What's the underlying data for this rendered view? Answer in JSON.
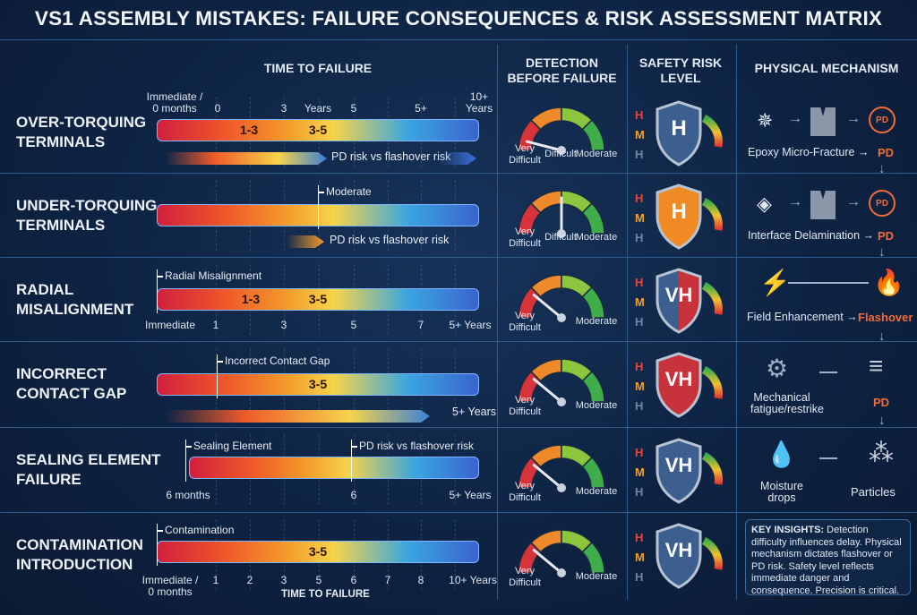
{
  "title": "VS1 ASSEMBLY MISTAKES: FAILURE CONSEQUENCES & RISK ASSESSMENT MATRIX",
  "headers": {
    "time": "TIME TO FAILURE",
    "detection": "DETECTION\nBEFORE FAILURE",
    "safety": "SAFETY RISK\nLEVEL",
    "mechanism": "PHYSICAL MECHANISM"
  },
  "colors": {
    "background": "#0e2343",
    "grid": "#2f5a8c",
    "pd_accent": "#f26b3a",
    "level_h": "#e8453c",
    "level_m": "#f3a12d",
    "level_low": "#6f86a6"
  },
  "hml_letters": [
    "H",
    "M",
    "H"
  ],
  "rows": [
    {
      "label": "OVER-TORQUING\nTERMINALS",
      "ticks_top": [
        "Immediate /\n0 months",
        "0",
        "3",
        "Years",
        "5",
        "5+",
        "10+\nYears"
      ],
      "bar_labels": [
        "1-3",
        "3-5"
      ],
      "sub_text": "PD risk vs flashover risk",
      "detection": {
        "labels": [
          "Very\nDifficult",
          "Difficult",
          "Moderate"
        ],
        "needle_level": 0.08
      },
      "safety": {
        "level": "H",
        "shield_color": "#3d5f8f"
      },
      "mechanism": {
        "text": "Epoxy Micro-Fracture →",
        "result": "PD",
        "icons": [
          "crack-icon",
          "fractured-block-icon",
          "pd-badge-icon"
        ]
      }
    },
    {
      "label": "UNDER-TORQUING\nTERMINALS",
      "markers": [
        "Moderate"
      ],
      "sub_text": "PD risk vs flashover risk",
      "detection": {
        "labels": [
          "Very\nDifficult",
          "Difficult",
          "Moderate"
        ],
        "needle_level": 0.5
      },
      "safety": {
        "level": "H",
        "shield_color": "#ef8a25"
      },
      "mechanism": {
        "text": "Interface Delamination →",
        "result": "PD",
        "icons": [
          "layers-icon",
          "delaminated-block-icon",
          "pd-badge-icon"
        ]
      }
    },
    {
      "label": "RADIAL\nMISALIGNMENT",
      "markers": [
        "Radial Misalignment"
      ],
      "bar_labels": [
        "1-3",
        "3-5"
      ],
      "ticks_bottom": [
        "Immediate",
        "1",
        "3",
        "5",
        "7",
        "5+ Years"
      ],
      "detection": {
        "labels": [
          "Very\nDifficult",
          "Moderate"
        ],
        "needle_level": 0.22
      },
      "safety": {
        "level": "VH",
        "shield_color": "#c8323a"
      },
      "mechanism": {
        "text": "Field Enhancement →",
        "result": "Flashover",
        "icons": [
          "lightning-icon",
          "fire-icon"
        ]
      }
    },
    {
      "label": "INCORRECT\nCONTACT GAP",
      "markers": [
        "Incorrect Contact Gap"
      ],
      "bar_labels": [
        "3-5"
      ],
      "sub_end_text": "5+ Years",
      "detection": {
        "labels": [
          "Very\nDifficult",
          "Moderate"
        ],
        "needle_level": 0.22
      },
      "safety": {
        "level": "VH",
        "shield_color": "#c8323a"
      },
      "mechanism": {
        "text": "Mechanical\nfatigue/restrike",
        "result": "PD",
        "icons": [
          "gears-icon",
          "contacts-icon"
        ]
      }
    },
    {
      "label": "SEALING ELEMENT\nFAILURE",
      "markers": [
        "Sealing Element",
        "PD risk vs flashover risk"
      ],
      "ticks_bottom": [
        "6 months",
        "6",
        "5+ Years"
      ],
      "detection": {
        "labels": [
          "Very\nDifficult",
          "Moderate"
        ],
        "needle_level": 0.22
      },
      "safety": {
        "level": "VH",
        "shield_color": "#3d5f8f"
      },
      "mechanism": {
        "text": "Moisture\ndrops",
        "result": "Particles",
        "icons": [
          "water-drops-icon",
          "particles-icon"
        ]
      }
    },
    {
      "label": "CONTAMINATION\nINTRODUCTION",
      "markers": [
        "Contamination"
      ],
      "bar_labels": [
        "3-5"
      ],
      "ticks_bottom": [
        "Immediate /\n0 months",
        "1",
        "2",
        "3",
        "5",
        "6",
        "7",
        "8",
        "10+ Years"
      ],
      "footer": "TIME TO FAILURE",
      "detection": {
        "labels": [
          "Very\nDifficult",
          "Moderate"
        ],
        "needle_level": 0.22
      },
      "safety": {
        "level": "VH",
        "shield_color": "#3d5f8f"
      }
    }
  ],
  "key_insights": {
    "heading": "KEY INSIGHTS:",
    "text": " Detection difficulty influences delay. Physical mechanism dictates flashover or PD risk. Safety level reflects immediate danger and consequence. Precision is critical."
  }
}
